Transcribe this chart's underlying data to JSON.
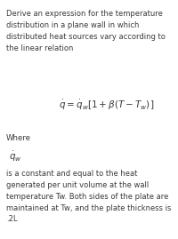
{
  "background_color": "#ffffff",
  "text_color": "#3a3a3a",
  "title_text": "Derive an expression for the temperature\ndistribution in a plane wall in which\ndistributed heat sources vary according to\nthe linear relation",
  "equation": "$\\dot{q} = \\dot{q}_w[1 + \\beta(T - T_w)]$",
  "where_label": "Where",
  "symbol": "$\\dot{q}_w$",
  "body_text": "is a constant and equal to the heat\ngenerated per unit volume at the wall\ntemperature Tw. Both sides of the plate are\nmaintained at Tw, and the plate thickness is\n.2L",
  "figsize": [
    2.0,
    2.69
  ],
  "dpi": 100
}
